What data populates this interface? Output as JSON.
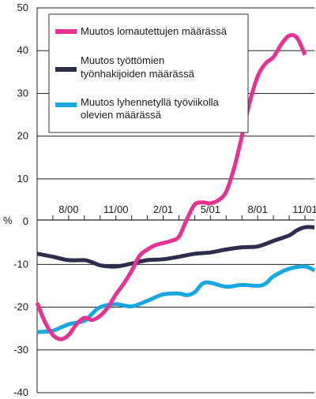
{
  "chart_data": {
    "type": "line",
    "ylabel": "%",
    "ylim": [
      -40,
      50
    ],
    "yticks": [
      -40,
      -30,
      -20,
      -10,
      0,
      10,
      20,
      30,
      40,
      50
    ],
    "xlim": [
      0,
      23
    ],
    "x_tick_labels": [
      {
        "label": "8/00",
        "x": 2
      },
      {
        "label": "11/00",
        "x": 5
      },
      {
        "label": "2/01",
        "x": 8
      },
      {
        "label": "5/01",
        "x": 11
      },
      {
        "label": "8/01",
        "x": 14
      },
      {
        "label": "11/01",
        "x": 17
      }
    ],
    "grid": {
      "horizontal": true,
      "vertical": false
    },
    "legend_position": "top-left",
    "series": [
      {
        "name": "Muutos lomautettujen määrässä",
        "color": "#e63293",
        "points": [
          [
            0.0,
            -19.0
          ],
          [
            0.5,
            -23.5
          ],
          [
            1.0,
            -26.5
          ],
          [
            1.5,
            -27.5
          ],
          [
            2.0,
            -26.5
          ],
          [
            2.5,
            -24.0
          ],
          [
            3.0,
            -22.5
          ],
          [
            3.5,
            -23.0
          ],
          [
            4.0,
            -22.0
          ],
          [
            4.5,
            -20.0
          ],
          [
            5.0,
            -17.0
          ],
          [
            5.5,
            -14.5
          ],
          [
            6.0,
            -11.5
          ],
          [
            6.5,
            -8.0
          ],
          [
            7.0,
            -6.5
          ],
          [
            7.5,
            -5.5
          ],
          [
            8.0,
            -5.0
          ],
          [
            8.5,
            -4.5
          ],
          [
            9.0,
            -3.5
          ],
          [
            9.5,
            0.5
          ],
          [
            10.0,
            4.0
          ],
          [
            10.5,
            4.5
          ],
          [
            11.0,
            4.3
          ],
          [
            11.5,
            5.0
          ],
          [
            12.0,
            7.0
          ],
          [
            12.5,
            12.5
          ],
          [
            13.0,
            20.0
          ],
          [
            13.5,
            28.0
          ],
          [
            14.0,
            34.0
          ],
          [
            14.5,
            37.0
          ],
          [
            15.0,
            38.5
          ],
          [
            15.5,
            41.5
          ],
          [
            16.0,
            43.5
          ],
          [
            16.5,
            43.0
          ],
          [
            17.0,
            39.0
          ]
        ]
      },
      {
        "name": "Muutos työttömien työnhakijoiden määrässä",
        "color": "#2e2d4c",
        "points": [
          [
            0.0,
            -7.5
          ],
          [
            1.0,
            -8.2
          ],
          [
            2.0,
            -9.0
          ],
          [
            3.0,
            -9.0
          ],
          [
            3.5,
            -9.5
          ],
          [
            4.0,
            -10.2
          ],
          [
            5.0,
            -10.5
          ],
          [
            6.0,
            -9.8
          ],
          [
            7.0,
            -9.0
          ],
          [
            8.0,
            -8.8
          ],
          [
            9.0,
            -8.2
          ],
          [
            10.0,
            -7.5
          ],
          [
            11.0,
            -7.2
          ],
          [
            12.0,
            -6.5
          ],
          [
            13.0,
            -6.0
          ],
          [
            14.0,
            -5.8
          ],
          [
            15.0,
            -4.5
          ],
          [
            16.0,
            -3.2
          ],
          [
            16.5,
            -2.0
          ],
          [
            17.0,
            -1.3
          ],
          [
            17.6,
            -1.3
          ]
        ]
      },
      {
        "name": "Muutos lyhennetyllä työviikolla olevien määrässä",
        "color": "#19a7e0",
        "points": [
          [
            0.0,
            -25.8
          ],
          [
            1.0,
            -25.5
          ],
          [
            2.0,
            -24.0
          ],
          [
            3.0,
            -23.2
          ],
          [
            3.5,
            -21.5
          ],
          [
            4.0,
            -20.0
          ],
          [
            5.0,
            -19.3
          ],
          [
            6.0,
            -19.8
          ],
          [
            7.0,
            -18.5
          ],
          [
            8.0,
            -17.0
          ],
          [
            9.0,
            -16.8
          ],
          [
            9.5,
            -17.2
          ],
          [
            10.0,
            -16.5
          ],
          [
            10.5,
            -14.5
          ],
          [
            11.0,
            -14.3
          ],
          [
            12.0,
            -15.2
          ],
          [
            13.0,
            -14.8
          ],
          [
            14.0,
            -15.0
          ],
          [
            14.5,
            -14.5
          ],
          [
            15.0,
            -12.8
          ],
          [
            16.0,
            -11.0
          ],
          [
            17.0,
            -10.5
          ],
          [
            17.6,
            -11.4
          ]
        ]
      }
    ]
  }
}
